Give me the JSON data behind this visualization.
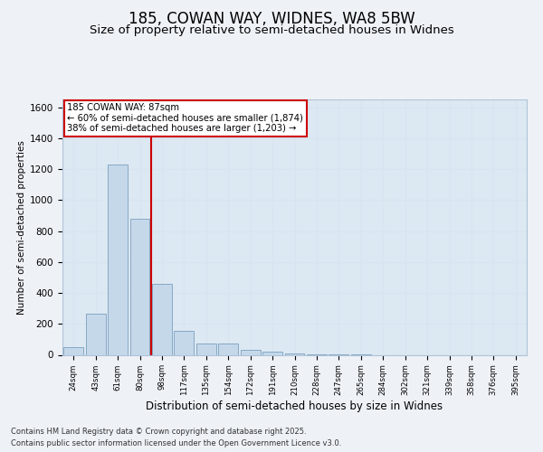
{
  "title1": "185, COWAN WAY, WIDNES, WA8 5BW",
  "title2": "Size of property relative to semi-detached houses in Widnes",
  "xlabel": "Distribution of semi-detached houses by size in Widnes",
  "ylabel": "Number of semi-detached properties",
  "categories": [
    "24sqm",
    "43sqm",
    "61sqm",
    "80sqm",
    "98sqm",
    "117sqm",
    "135sqm",
    "154sqm",
    "172sqm",
    "191sqm",
    "210sqm",
    "228sqm",
    "247sqm",
    "265sqm",
    "284sqm",
    "302sqm",
    "321sqm",
    "339sqm",
    "358sqm",
    "376sqm",
    "395sqm"
  ],
  "values": [
    50,
    265,
    1230,
    880,
    460,
    155,
    75,
    75,
    30,
    20,
    10,
    5,
    2,
    1,
    0,
    0,
    0,
    0,
    0,
    0,
    0
  ],
  "bar_color": "#c5d8ea",
  "bar_edge_color": "#7ba0bf",
  "red_line_x": 3.5,
  "red_line_color": "#cc0000",
  "annotation_title": "185 COWAN WAY: 87sqm",
  "annotation_line1": "← 60% of semi-detached houses are smaller (1,874)",
  "annotation_line2": "38% of semi-detached houses are larger (1,203) →",
  "annotation_box_color": "#ffffff",
  "annotation_box_edge_color": "#cc0000",
  "ylim": [
    0,
    1650
  ],
  "yticks": [
    0,
    200,
    400,
    600,
    800,
    1000,
    1200,
    1400,
    1600
  ],
  "background_color": "#eef2f7",
  "footer1": "Contains HM Land Registry data © Crown copyright and database right 2025.",
  "footer2": "Contains public sector information licensed under the Open Government Licence v3.0.",
  "title1_fontsize": 12,
  "title2_fontsize": 9.5,
  "grid_color": "#d8e4f0",
  "axis_bg_color": "#dce8f2"
}
